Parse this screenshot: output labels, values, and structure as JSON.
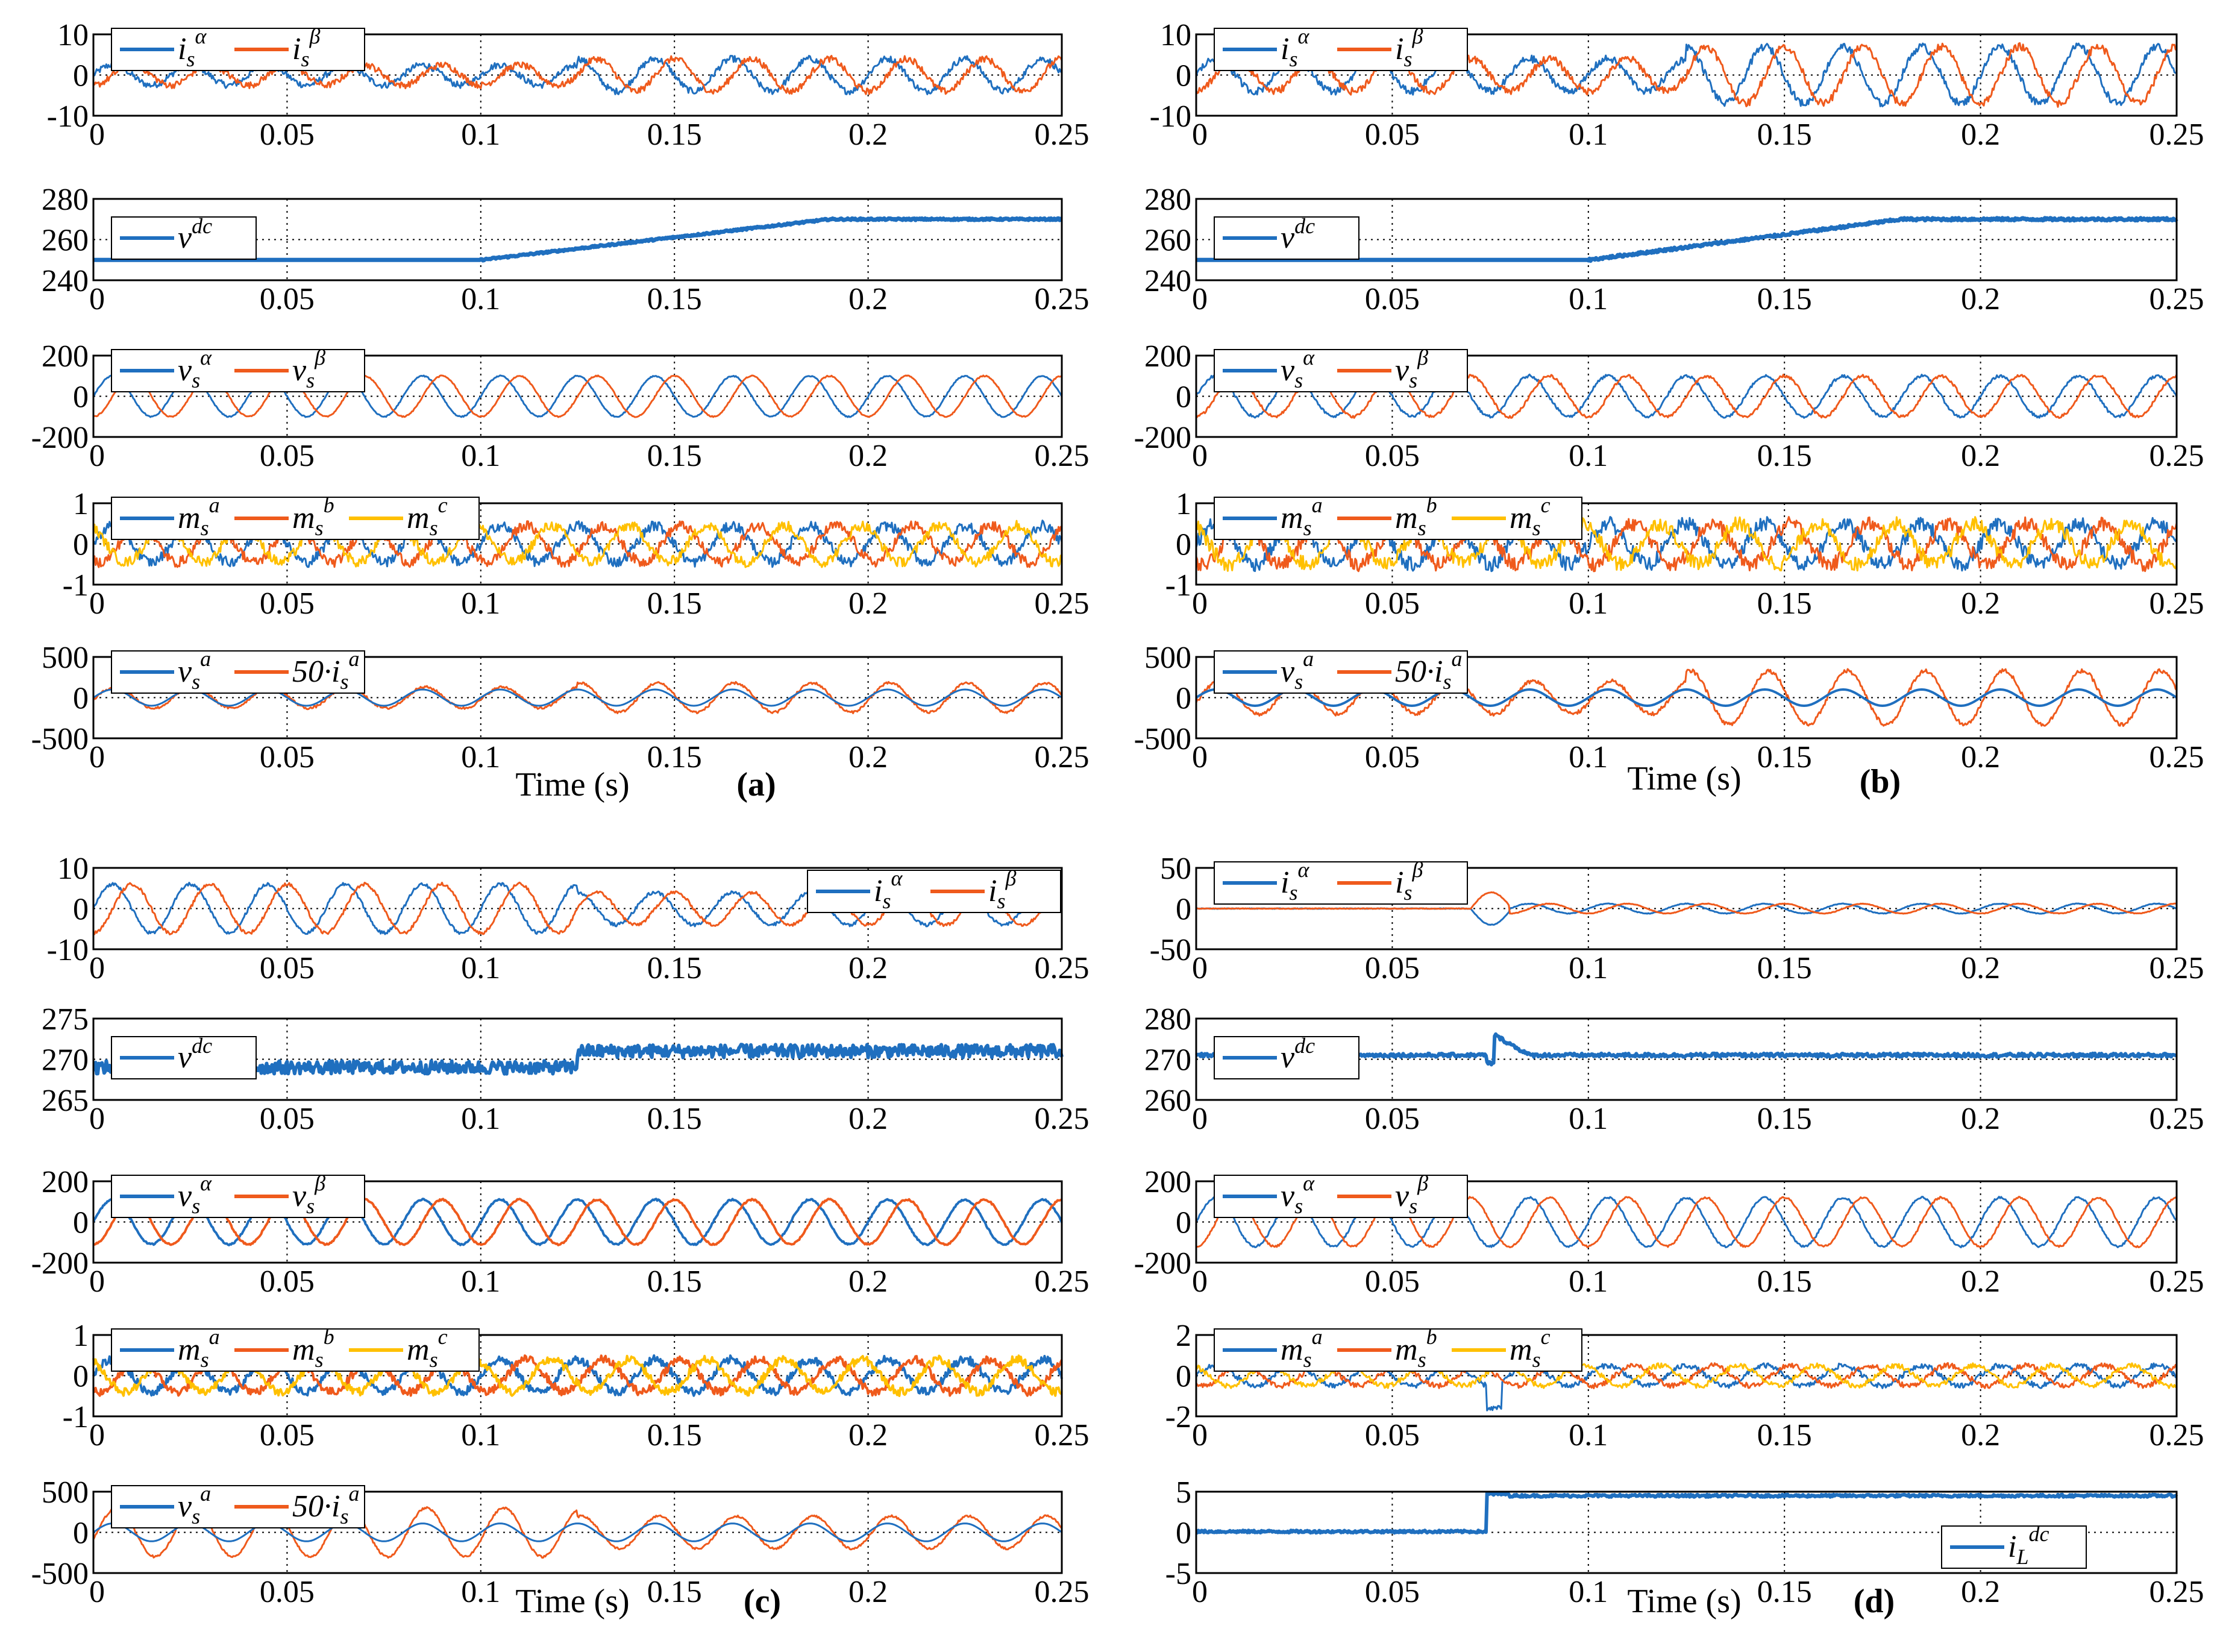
{
  "figure": {
    "panels": [
      {
        "id": "a",
        "label": "(a)",
        "xlabel": "Time (s)",
        "xlabel_row": 4,
        "rows": [
          {
            "yticks": [
              "10",
              "0",
              "-10"
            ],
            "ylim": [
              -10,
              10
            ],
            "legend_pos": "top-left",
            "legend": [
              {
                "sym": "i",
                "sub": "s",
                "sup": "α"
              },
              {
                "sym": "i",
                "sub": "s",
                "sup": "β"
              }
            ]
          },
          {
            "yticks": [
              "280",
              "260",
              "240"
            ],
            "ylim": [
              240,
              280
            ],
            "legend_pos": "top-left",
            "legend": [
              {
                "sym": "v",
                "sub": "",
                "sup": "dc"
              }
            ]
          },
          {
            "yticks": [
              "200",
              "0",
              "-200"
            ],
            "ylim": [
              -200,
              200
            ],
            "legend_pos": "top-left",
            "legend": [
              {
                "sym": "v",
                "sub": "s",
                "sup": "α"
              },
              {
                "sym": "v",
                "sub": "s",
                "sup": "β"
              }
            ]
          },
          {
            "yticks": [
              "1",
              "0",
              "-1"
            ],
            "ylim": [
              -1,
              1
            ],
            "legend_pos": "top-left",
            "legend": [
              {
                "sym": "m",
                "sub": "s",
                "sup": "a"
              },
              {
                "sym": "m",
                "sub": "s",
                "sup": "b"
              },
              {
                "sym": "m",
                "sub": "s",
                "sup": "c"
              }
            ]
          },
          {
            "yticks": [
              "500",
              "0",
              "-500"
            ],
            "ylim": [
              -500,
              500
            ],
            "legend_pos": "top-left",
            "legend": [
              {
                "sym": "v",
                "sub": "s",
                "sup": "a"
              },
              {
                "sym": "50·i",
                "sub": "s",
                "sup": "a"
              }
            ]
          }
        ]
      },
      {
        "id": "b",
        "label": "(b)",
        "xlabel": "Time (s)",
        "xlabel_row": 4,
        "rows": [
          {
            "yticks": [
              "10",
              "0",
              "-10"
            ],
            "ylim": [
              -10,
              10
            ],
            "legend_pos": "top-left",
            "legend": [
              {
                "sym": "i",
                "sub": "s",
                "sup": "α"
              },
              {
                "sym": "i",
                "sub": "s",
                "sup": "β"
              }
            ]
          },
          {
            "yticks": [
              "280",
              "260",
              "240"
            ],
            "ylim": [
              240,
              280
            ],
            "legend_pos": "top-left",
            "legend": [
              {
                "sym": "v",
                "sub": "",
                "sup": "dc"
              }
            ]
          },
          {
            "yticks": [
              "200",
              "0",
              "-200"
            ],
            "ylim": [
              -200,
              200
            ],
            "legend_pos": "top-left",
            "legend": [
              {
                "sym": "v",
                "sub": "s",
                "sup": "α"
              },
              {
                "sym": "v",
                "sub": "s",
                "sup": "β"
              }
            ]
          },
          {
            "yticks": [
              "1",
              "0",
              "-1"
            ],
            "ylim": [
              -1,
              1
            ],
            "legend_pos": "top-left",
            "legend": [
              {
                "sym": "m",
                "sub": "s",
                "sup": "a"
              },
              {
                "sym": "m",
                "sub": "s",
                "sup": "b"
              },
              {
                "sym": "m",
                "sub": "s",
                "sup": "c"
              }
            ]
          },
          {
            "yticks": [
              "500",
              "0",
              "-500"
            ],
            "ylim": [
              -500,
              500
            ],
            "legend_pos": "top-left",
            "legend": [
              {
                "sym": "v",
                "sub": "s",
                "sup": "a"
              },
              {
                "sym": "50·i",
                "sub": "s",
                "sup": "a"
              }
            ]
          }
        ]
      },
      {
        "id": "c",
        "label": "(c)",
        "xlabel": "Time (s)",
        "xlabel_row": 4,
        "rows": [
          {
            "yticks": [
              "10",
              "0",
              "-10"
            ],
            "ylim": [
              -10,
              10
            ],
            "legend_pos": "top-right",
            "legend": [
              {
                "sym": "i",
                "sub": "s",
                "sup": "α"
              },
              {
                "sym": "i",
                "sub": "s",
                "sup": "β"
              }
            ]
          },
          {
            "yticks": [
              "275",
              "270",
              "265"
            ],
            "ylim": [
              265,
              275
            ],
            "legend_pos": "top-left",
            "legend": [
              {
                "sym": "v",
                "sub": "",
                "sup": "dc"
              }
            ]
          },
          {
            "yticks": [
              "200",
              "0",
              "-200"
            ],
            "ylim": [
              -200,
              200
            ],
            "legend_pos": "top-left",
            "legend": [
              {
                "sym": "v",
                "sub": "s",
                "sup": "α"
              },
              {
                "sym": "v",
                "sub": "s",
                "sup": "β"
              }
            ]
          },
          {
            "yticks": [
              "1",
              "0",
              "-1"
            ],
            "ylim": [
              -1,
              1
            ],
            "legend_pos": "top-left",
            "legend": [
              {
                "sym": "m",
                "sub": "s",
                "sup": "a"
              },
              {
                "sym": "m",
                "sub": "s",
                "sup": "b"
              },
              {
                "sym": "m",
                "sub": "s",
                "sup": "c"
              }
            ]
          },
          {
            "yticks": [
              "500",
              "0",
              "-500"
            ],
            "ylim": [
              -500,
              500
            ],
            "legend_pos": "top-left",
            "legend": [
              {
                "sym": "v",
                "sub": "s",
                "sup": "a"
              },
              {
                "sym": "50·i",
                "sub": "s",
                "sup": "a"
              }
            ]
          }
        ]
      },
      {
        "id": "d",
        "label": "(d)",
        "xlabel": "Time (s)",
        "xlabel_row": 4,
        "rows": [
          {
            "yticks": [
              "50",
              "0",
              "-50"
            ],
            "ylim": [
              -50,
              50
            ],
            "legend_pos": "top-left",
            "legend": [
              {
                "sym": "i",
                "sub": "s",
                "sup": "α"
              },
              {
                "sym": "i",
                "sub": "s",
                "sup": "β"
              }
            ]
          },
          {
            "yticks": [
              "280",
              "270",
              "260"
            ],
            "ylim": [
              260,
              280
            ],
            "legend_pos": "top-left",
            "legend": [
              {
                "sym": "v",
                "sub": "",
                "sup": "dc"
              }
            ]
          },
          {
            "yticks": [
              "200",
              "0",
              "-200"
            ],
            "ylim": [
              -200,
              200
            ],
            "legend_pos": "top-left",
            "legend": [
              {
                "sym": "v",
                "sub": "s",
                "sup": "α"
              },
              {
                "sym": "v",
                "sub": "s",
                "sup": "β"
              }
            ]
          },
          {
            "yticks": [
              "2",
              "0",
              "-2"
            ],
            "ylim": [
              -2,
              2
            ],
            "legend_pos": "top-left",
            "legend": [
              {
                "sym": "m",
                "sub": "s",
                "sup": "a"
              },
              {
                "sym": "m",
                "sub": "s",
                "sup": "b"
              },
              {
                "sym": "m",
                "sub": "s",
                "sup": "c"
              }
            ]
          },
          {
            "yticks": [
              "5",
              "0",
              "-5"
            ],
            "ylim": [
              -5,
              5
            ],
            "legend_pos": "bottom-right",
            "legend": [
              {
                "sym": "i",
                "sub": "L",
                "sup": "dc"
              }
            ]
          }
        ]
      }
    ]
  },
  "chart_data": {
    "type": "line",
    "x_range": [
      0,
      0.25
    ],
    "xticks": [
      "0",
      "0.05",
      "0.1",
      "0.15",
      "0.2",
      "0.25"
    ],
    "xlabel": "Time (s)",
    "colors": {
      "blue": "#1f6fbf",
      "orange": "#ef5a1c",
      "yellow": "#ffc000",
      "grid": "#000000"
    },
    "grid": "dotted",
    "series_description": {
      "a": {
        "i_amp_before": 2.5,
        "i_amp_after": 4,
        "step_time": 0.125,
        "vdc_before": 250,
        "vdc_after": 270,
        "v_amp": 100,
        "freq_hz": 50
      },
      "b": {
        "i_amp_before": 4,
        "i_amp_after": 7,
        "step_time": 0.125,
        "vdc_before": 250,
        "vdc_after": 270,
        "v_amp": 100,
        "freq_hz": 50
      },
      "c": {
        "i_amp_before": 6,
        "i_amp_after": 4,
        "step_time": 0.125,
        "vdc_before": 269,
        "vdc_after": 271,
        "v_amp": 110,
        "freq_hz": 50
      },
      "d": {
        "i_amp_before": 0,
        "i_amp_after": 6,
        "step_time": 0.075,
        "vdc": 271,
        "vdc_spike": 276,
        "v_amp": 120,
        "iL_before": 0,
        "iL_after": 4.5,
        "freq_hz": 50
      }
    }
  }
}
